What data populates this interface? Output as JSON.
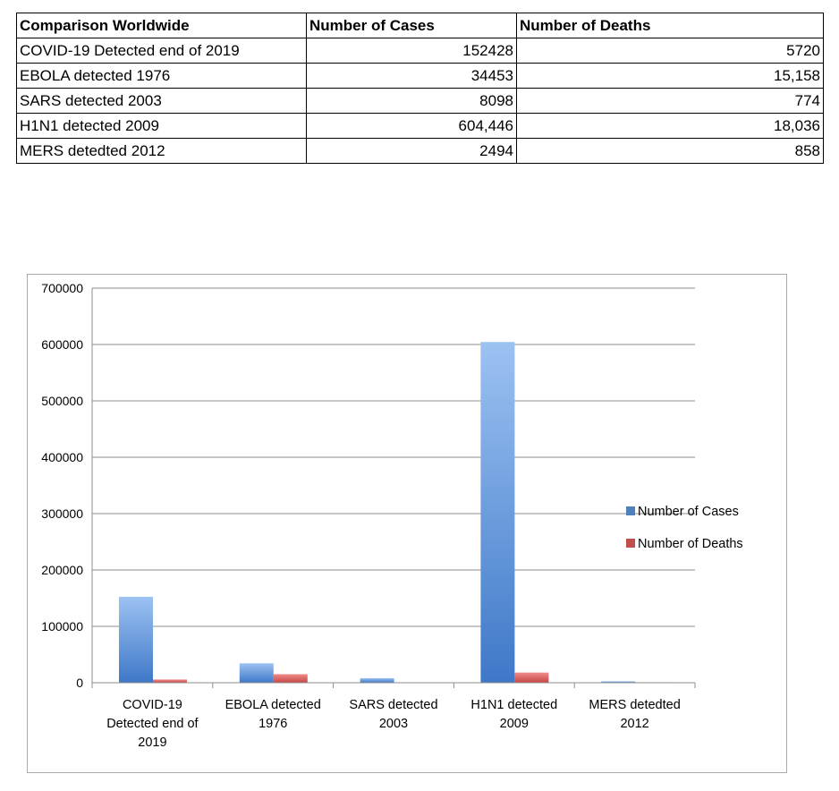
{
  "table": {
    "headers": [
      "Comparison Worldwide",
      "Number of Cases",
      "Number of Deaths"
    ],
    "rows": [
      [
        "COVID-19 Detected end of 2019",
        "152428",
        "5720"
      ],
      [
        "EBOLA detected 1976",
        "34453",
        "15,158"
      ],
      [
        "SARS detected 2003",
        "8098",
        "774"
      ],
      [
        "H1N1 detected 2009",
        "604,446",
        "18,036"
      ],
      [
        "MERS detedted 2012",
        "2494",
        "858"
      ]
    ]
  },
  "chart_data": {
    "type": "bar",
    "categories": [
      "COVID-19 Detected end of 2019",
      "EBOLA detected 1976",
      "SARS detected 2003",
      "H1N1 detected 2009",
      "MERS detedted 2012"
    ],
    "category_label_lines": [
      [
        "COVID-19",
        "Detected end of",
        "2019"
      ],
      [
        "EBOLA detected",
        "1976"
      ],
      [
        "SARS detected",
        "2003"
      ],
      [
        "H1N1 detected",
        "2009"
      ],
      [
        "MERS detedted",
        "2012"
      ]
    ],
    "series": [
      {
        "name": "Number of Cases",
        "values": [
          152428,
          34453,
          8098,
          604446,
          2494
        ],
        "color": "#4f81bd"
      },
      {
        "name": "Number of Deaths",
        "values": [
          5720,
          15158,
          774,
          18036,
          858
        ],
        "color": "#c0504d"
      }
    ],
    "yticks": [
      "0",
      "100000",
      "200000",
      "300000",
      "400000",
      "500000",
      "600000",
      "700000"
    ],
    "ylim": [
      0,
      700000
    ],
    "grid": true,
    "legend_position": "right"
  }
}
